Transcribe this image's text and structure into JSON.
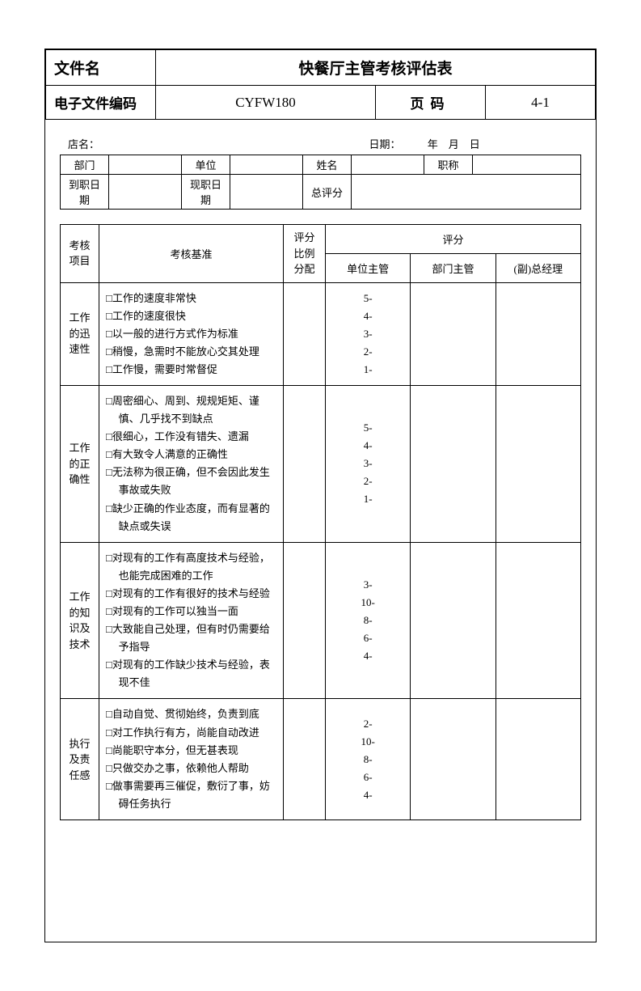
{
  "header": {
    "filename_label": "文件名",
    "filename_value": "快餐厅主管考核评估表",
    "code_label": "电子文件编码",
    "code_value": "CYFW180",
    "page_label": "页码",
    "page_value": "4-1"
  },
  "info": {
    "store_label": "店名：",
    "date_label": "日期：",
    "date_value": "年　月　日",
    "row1": {
      "dept_label": "部门",
      "dept_value": "",
      "unit_label": "单位",
      "unit_value": "",
      "name_label": "姓名",
      "name_value": "",
      "title_label": "职称",
      "title_value": ""
    },
    "row2": {
      "hire_label": "到职日期",
      "hire_value": "",
      "cur_label": "现职日期",
      "cur_value": "",
      "total_label": "总评分",
      "total_value": ""
    }
  },
  "main": {
    "head": {
      "item": "考核项目",
      "basis": "考核基准",
      "ratio": "评分比例分配",
      "score": "评分",
      "s1": "单位主管",
      "s2": "部门主管",
      "s3": "(副)总经理"
    },
    "rows": [
      {
        "item": "工作的迅速性",
        "basis": [
          "□工作的速度非常快",
          "□工作的速度很快",
          "□以一般的进行方式作为标准",
          "□稍慢，急需时不能放心交其处理",
          "□工作慢，需要时常督促"
        ],
        "ratio": "",
        "scores": [
          "5-",
          "4-",
          "3-",
          "2-",
          "1-"
        ]
      },
      {
        "item": "工作的正确性",
        "basis": [
          "□周密细心、周到、规规矩矩、谨慎、几乎找不到缺点",
          "□很细心，工作没有错失、遗漏",
          "□有大致令人满意的正确性",
          "□无法称为很正确，但不会因此发生事故或失败",
          "□缺少正确的作业态度，而有显著的缺点或失误"
        ],
        "ratio": "",
        "scores": [
          "5-",
          "4-",
          "3-",
          "2-",
          "1-"
        ]
      },
      {
        "item": "工作的知识及技术",
        "basis": [
          "□对现有的工作有高度技术与经验，也能完成困难的工作",
          "□对现有的工作有很好的技术与经验",
          "□对现有的工作可以独当一面",
          "□大致能自己处理，但有时仍需要给予指导",
          "□对现有的工作缺少技术与经验，表现不佳"
        ],
        "ratio": "",
        "scores": [
          "3-",
          "10-",
          "8-",
          "6-",
          "4-"
        ]
      },
      {
        "item": "执行及责任感",
        "basis": [
          "□自动自觉、贯彻始终，负责到底",
          "□对工作执行有方，尚能自动改进",
          "□尚能职守本分，但无甚表现",
          "□只做交办之事，依赖他人帮助",
          "□做事需要再三催促，敷衍了事，妨碍任务执行"
        ],
        "ratio": "",
        "scores": [
          "2-",
          "10-",
          "8-",
          "6-",
          "4-"
        ]
      }
    ]
  },
  "colors": {
    "border": "#000000",
    "background": "#ffffff",
    "text": "#000000"
  }
}
